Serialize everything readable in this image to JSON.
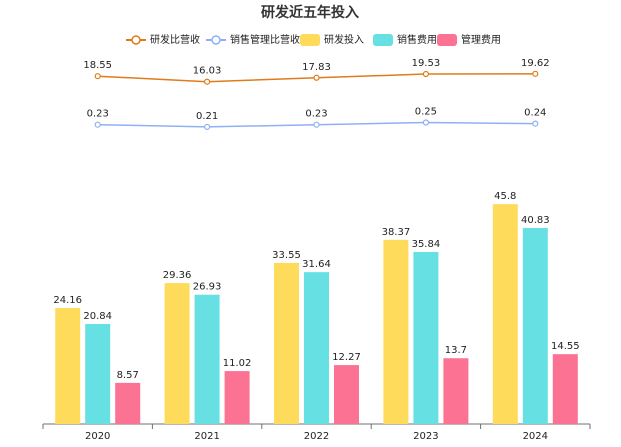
{
  "chart_data": {
    "type": "bar",
    "title": "研发近五年投入",
    "categories": [
      "2020",
      "2021",
      "2022",
      "2023",
      "2024"
    ],
    "series": [
      {
        "name": "研发比营收",
        "type": "line",
        "axis": "y2",
        "color": "#e07b1a",
        "values": [
          18.55,
          16.03,
          17.83,
          19.53,
          19.62
        ]
      },
      {
        "name": "销售管理比营收",
        "type": "line",
        "axis": "y3",
        "color": "#8fb0f7",
        "values": [
          0.23,
          0.21,
          0.23,
          0.25,
          0.24
        ]
      },
      {
        "name": "研发投入",
        "type": "bar",
        "color": "#ffdb5c",
        "values": [
          24.16,
          29.36,
          33.55,
          38.37,
          45.8
        ]
      },
      {
        "name": "销售费用",
        "type": "bar",
        "color": "#67e0e3",
        "values": [
          20.84,
          26.93,
          31.64,
          35.84,
          40.83
        ]
      },
      {
        "name": "管理费用",
        "type": "bar",
        "color": "#fb7293",
        "values": [
          8.57,
          11.02,
          12.27,
          13.7,
          14.55
        ]
      }
    ],
    "ylim": [
      0,
      80
    ],
    "y2lim": [
      -15,
      35
    ],
    "y3lim": [
      0,
      1
    ],
    "grid": false
  }
}
